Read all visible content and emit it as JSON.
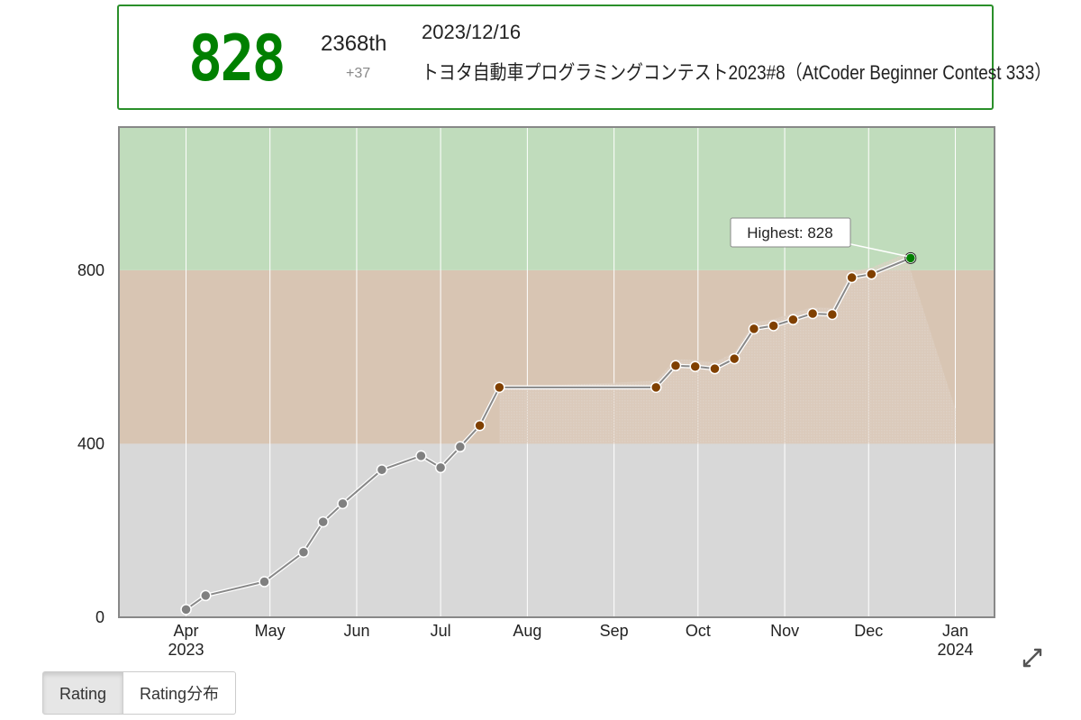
{
  "status": {
    "rating": "828",
    "rank": "2368th",
    "diff": "+37",
    "date": "2023/12/16",
    "contest": "トヨタ自動車プログラミングコンテスト2023#8（AtCoder Beginner Contest 333）"
  },
  "tabs": [
    {
      "label": "Rating",
      "active": true
    },
    {
      "label": "Rating分布",
      "active": false
    }
  ],
  "icons": {
    "expand": "expand-icon"
  },
  "chart_data": {
    "type": "line",
    "title": "",
    "xlabel": "",
    "ylabel": "",
    "xlim": [
      "2023-03-08",
      "2024-01-15"
    ],
    "ylim": [
      0,
      1130
    ],
    "grid": true,
    "y_ticks": [
      0,
      400,
      800
    ],
    "x_ticks": [
      {
        "date": "2023-04-01",
        "label": "Apr",
        "sublabel": "2023"
      },
      {
        "date": "2023-05-01",
        "label": "May",
        "sublabel": ""
      },
      {
        "date": "2023-06-01",
        "label": "Jun",
        "sublabel": ""
      },
      {
        "date": "2023-07-01",
        "label": "Jul",
        "sublabel": ""
      },
      {
        "date": "2023-08-01",
        "label": "Aug",
        "sublabel": ""
      },
      {
        "date": "2023-09-01",
        "label": "Sep",
        "sublabel": ""
      },
      {
        "date": "2023-10-01",
        "label": "Oct",
        "sublabel": ""
      },
      {
        "date": "2023-11-01",
        "label": "Nov",
        "sublabel": ""
      },
      {
        "date": "2023-12-01",
        "label": "Dec",
        "sublabel": ""
      },
      {
        "date": "2024-01-01",
        "label": "Jan",
        "sublabel": "2024"
      }
    ],
    "bands": [
      {
        "from": 0,
        "to": 400,
        "color": "#d8d8d8"
      },
      {
        "from": 400,
        "to": 800,
        "color": "#d8c5b3"
      },
      {
        "from": 800,
        "to": 1130,
        "color": "#c0dcbc"
      }
    ],
    "series": [
      {
        "x": [
          "2023-04-01",
          "2023-04-08",
          "2023-04-29",
          "2023-05-13",
          "2023-05-20",
          "2023-05-27",
          "2023-06-10",
          "2023-06-24",
          "2023-07-01",
          "2023-07-08",
          "2023-07-15",
          "2023-07-22",
          "2023-09-16",
          "2023-09-23",
          "2023-09-30",
          "2023-10-07",
          "2023-10-14",
          "2023-10-21",
          "2023-10-28",
          "2023-11-04",
          "2023-11-11",
          "2023-11-18",
          "2023-11-25",
          "2023-12-02",
          "2023-12-16"
        ],
        "values": [
          18,
          50,
          82,
          150,
          220,
          262,
          340,
          372,
          345,
          393,
          442,
          530,
          530,
          580,
          578,
          573,
          596,
          665,
          672,
          686,
          700,
          698,
          783,
          791,
          828
        ]
      }
    ],
    "performance_color": "#ddd0c4",
    "annotation": {
      "label": "Highest: 828",
      "x": "2023-12-16",
      "y": 828
    }
  }
}
